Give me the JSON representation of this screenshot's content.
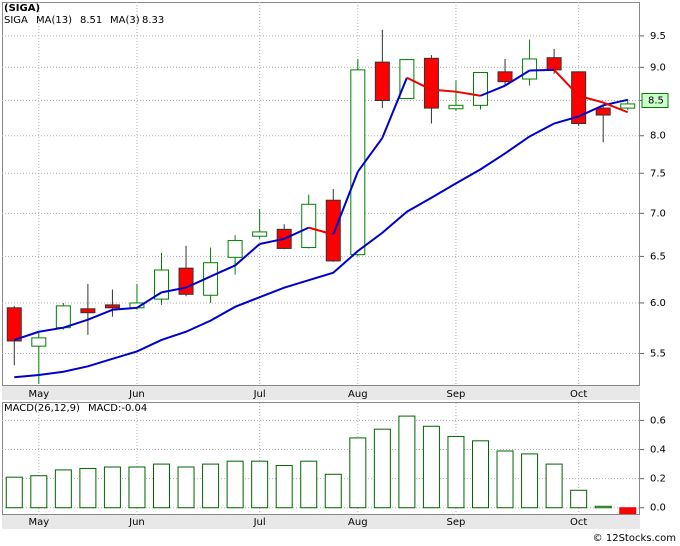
{
  "chart_data": [
    {
      "type": "candlestick",
      "title": "(SIGA)",
      "log_scale": true,
      "grid": true,
      "categories": [
        null,
        "May",
        null,
        null,
        null,
        "Jun",
        null,
        null,
        null,
        null,
        "Jul",
        null,
        null,
        null,
        "Aug",
        null,
        null,
        null,
        "Sep",
        null,
        null,
        null,
        null,
        "Oct",
        null,
        null
      ],
      "ylim": [
        5.21,
        10.07
      ],
      "yticks": [
        5.5,
        {
          "value": 6,
          "label": "6.0"
        },
        6.5,
        {
          "value": 7,
          "label": "7.0"
        },
        7.5,
        {
          "value": 8,
          "label": "8.0"
        },
        8.5,
        {
          "value": 9,
          "label": "9.0"
        },
        9.5
      ],
      "price_label": 8.5,
      "series": [
        {
          "name": "SIGA",
          "color": "#008000",
          "up_color": "#008000",
          "down_color": "#ff0000",
          "open": [
            5.95,
            5.57,
            5.75,
            5.94,
            5.98,
            5.95,
            6.04,
            6.37,
            6.08,
            6.49,
            6.73,
            6.81,
            6.6,
            7.16,
            6.52,
            9.08,
            8.53,
            9.14,
            8.38,
            8.43,
            8.93,
            8.82,
            9.15,
            8.93,
            8.39,
            8.39
          ],
          "high": [
            5.97,
            5.7,
            6.0,
            6.2,
            6.14,
            6.2,
            6.54,
            6.62,
            6.6,
            6.74,
            7.05,
            6.87,
            7.23,
            7.3,
            9.13,
            9.6,
            9.13,
            9.19,
            8.8,
            8.92,
            9.13,
            9.44,
            9.29,
            8.93,
            8.42,
            8.52
          ],
          "low": [
            5.39,
            5.22,
            5.73,
            5.68,
            5.86,
            5.93,
            5.98,
            6.07,
            6.0,
            6.3,
            6.7,
            6.58,
            6.59,
            6.44,
            6.5,
            8.39,
            8.52,
            8.17,
            8.35,
            8.37,
            8.72,
            8.72,
            8.9,
            8.14,
            7.91,
            8.36
          ],
          "close": [
            5.62,
            5.65,
            5.97,
            5.9,
            5.95,
            6.0,
            6.35,
            6.09,
            6.43,
            6.68,
            6.78,
            6.59,
            7.11,
            6.45,
            8.96,
            8.5,
            9.12,
            8.39,
            8.43,
            8.92,
            8.78,
            9.13,
            8.96,
            8.17,
            8.29,
            8.45
          ]
        },
        {
          "name": "MA(13)",
          "color": "#0000cc",
          "last_value": 8.51,
          "values": [
            5.28,
            5.3,
            5.33,
            5.38,
            5.45,
            5.52,
            5.63,
            5.71,
            5.82,
            5.96,
            6.06,
            6.16,
            6.24,
            6.32,
            6.56,
            6.77,
            7.02,
            7.19,
            7.37,
            7.55,
            7.76,
            7.99,
            8.17,
            8.27,
            8.43,
            8.51
          ]
        },
        {
          "name": "MA(3)",
          "color": "#0000cc",
          "down_color": "#ee0000",
          "last_value": 8.33,
          "values": [
            5.63,
            5.71,
            5.75,
            5.83,
            5.93,
            5.95,
            6.11,
            6.16,
            6.28,
            6.4,
            6.64,
            6.7,
            6.83,
            6.75,
            7.52,
            7.97,
            8.84,
            8.66,
            8.63,
            8.57,
            8.72,
            8.95,
            8.96,
            8.57,
            8.47,
            8.33
          ]
        }
      ]
    },
    {
      "type": "bar",
      "title": "MACD(26,12,9)",
      "value_text": "MACD:-0.04",
      "grid": true,
      "categories": [
        null,
        "May",
        null,
        null,
        null,
        "Jun",
        null,
        null,
        null,
        null,
        "Jul",
        null,
        null,
        null,
        "Aug",
        null,
        null,
        null,
        "Sep",
        null,
        null,
        null,
        null,
        "Oct",
        null,
        null
      ],
      "ylim": [
        -0.05,
        0.72
      ],
      "yticks": [
        {
          "value": 0,
          "label": "0.0"
        },
        0.2,
        0.4,
        0.6
      ],
      "up_color": "#006400",
      "down_color": "#ff0000",
      "values": [
        0.21,
        0.22,
        0.26,
        0.27,
        0.28,
        0.28,
        0.3,
        0.28,
        0.3,
        0.32,
        0.32,
        0.29,
        0.32,
        0.23,
        0.48,
        0.54,
        0.63,
        0.56,
        0.49,
        0.46,
        0.39,
        0.37,
        0.3,
        0.12,
        0.01,
        -0.04
      ]
    },
    {
      "type": "footer",
      "text": "© 12Stocks.com"
    }
  ]
}
